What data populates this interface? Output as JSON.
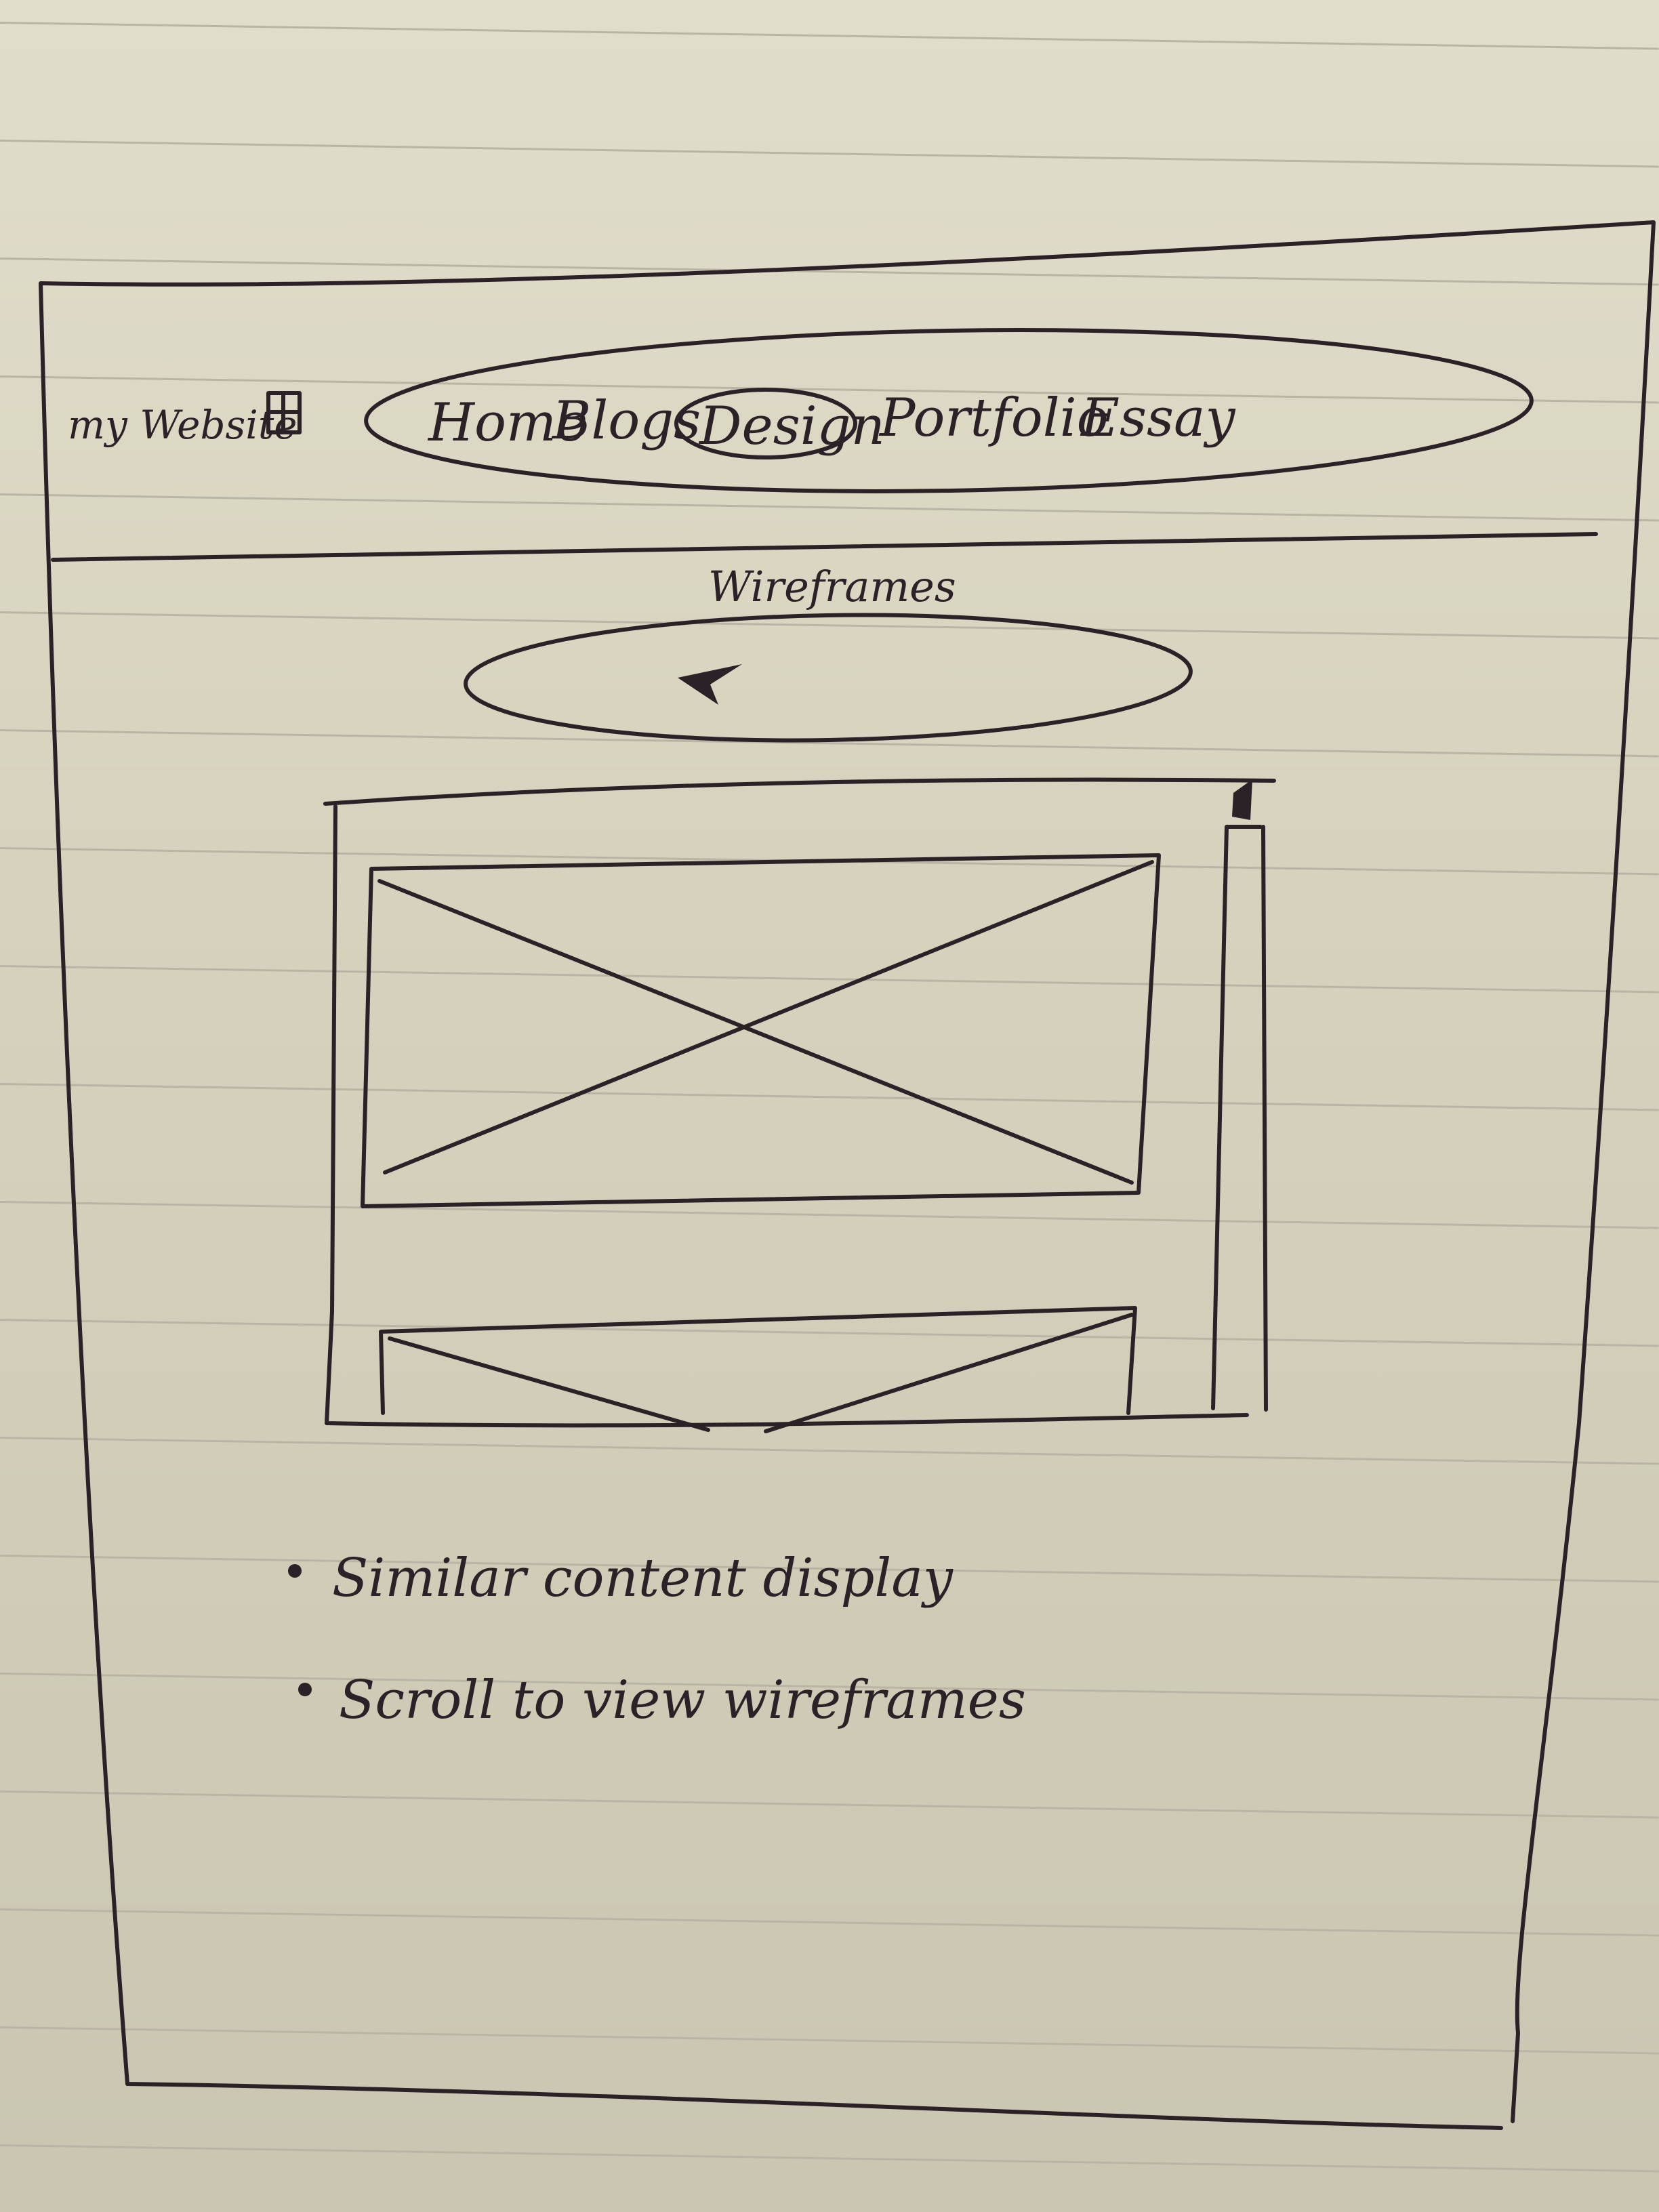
{
  "site": {
    "logo_text": "my Website"
  },
  "nav": {
    "items": [
      {
        "label": "Home"
      },
      {
        "label": "Blogs"
      },
      {
        "label": "Design",
        "active": true
      },
      {
        "label": "Portfolio"
      },
      {
        "label": "Essay"
      }
    ]
  },
  "main": {
    "section_title": "Wireframes",
    "bullets": [
      "Similar content display",
      "Scroll to view wireframes"
    ]
  },
  "colors": {
    "ink": "#2b2228",
    "paper": "#d6d2bd",
    "ruled_line": "#b9b5a4"
  },
  "icons": {
    "logo": "grid-icon",
    "carousel": "arrow-icon",
    "image_placeholder": "image-placeholder-icon"
  }
}
